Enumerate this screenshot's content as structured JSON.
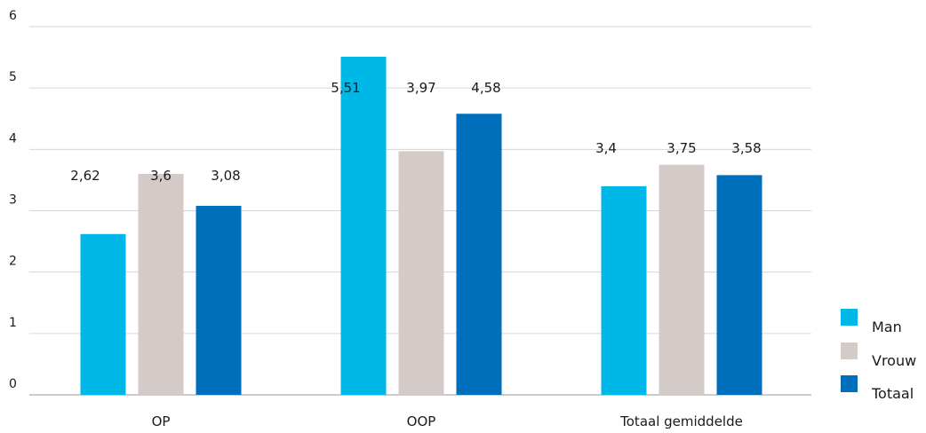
{
  "chart_data": {
    "type": "bar",
    "categories": [
      "OP",
      "OOP",
      "Totaal gemiddelde"
    ],
    "series": [
      {
        "name": "Man",
        "values": [
          2.62,
          5.51,
          3.4
        ],
        "labels": [
          "2,62",
          "5,51",
          "3,4"
        ],
        "color": "#00b8e8"
      },
      {
        "name": "Vrouw",
        "values": [
          3.6,
          3.97,
          3.75
        ],
        "labels": [
          "3,6",
          "3,97",
          "3,75"
        ],
        "color": "#d4cac7"
      },
      {
        "name": "Totaal",
        "values": [
          3.08,
          4.58,
          3.58
        ],
        "labels": [
          "3,08",
          "4,58",
          "3,58"
        ],
        "color": "#006fbb"
      }
    ],
    "yticks": [
      "0",
      "1",
      "2",
      "3",
      "4",
      "5",
      "6"
    ],
    "ylim": [
      0,
      6
    ],
    "grid": true,
    "legend": "right",
    "title": "",
    "xlabel": "",
    "ylabel": ""
  }
}
